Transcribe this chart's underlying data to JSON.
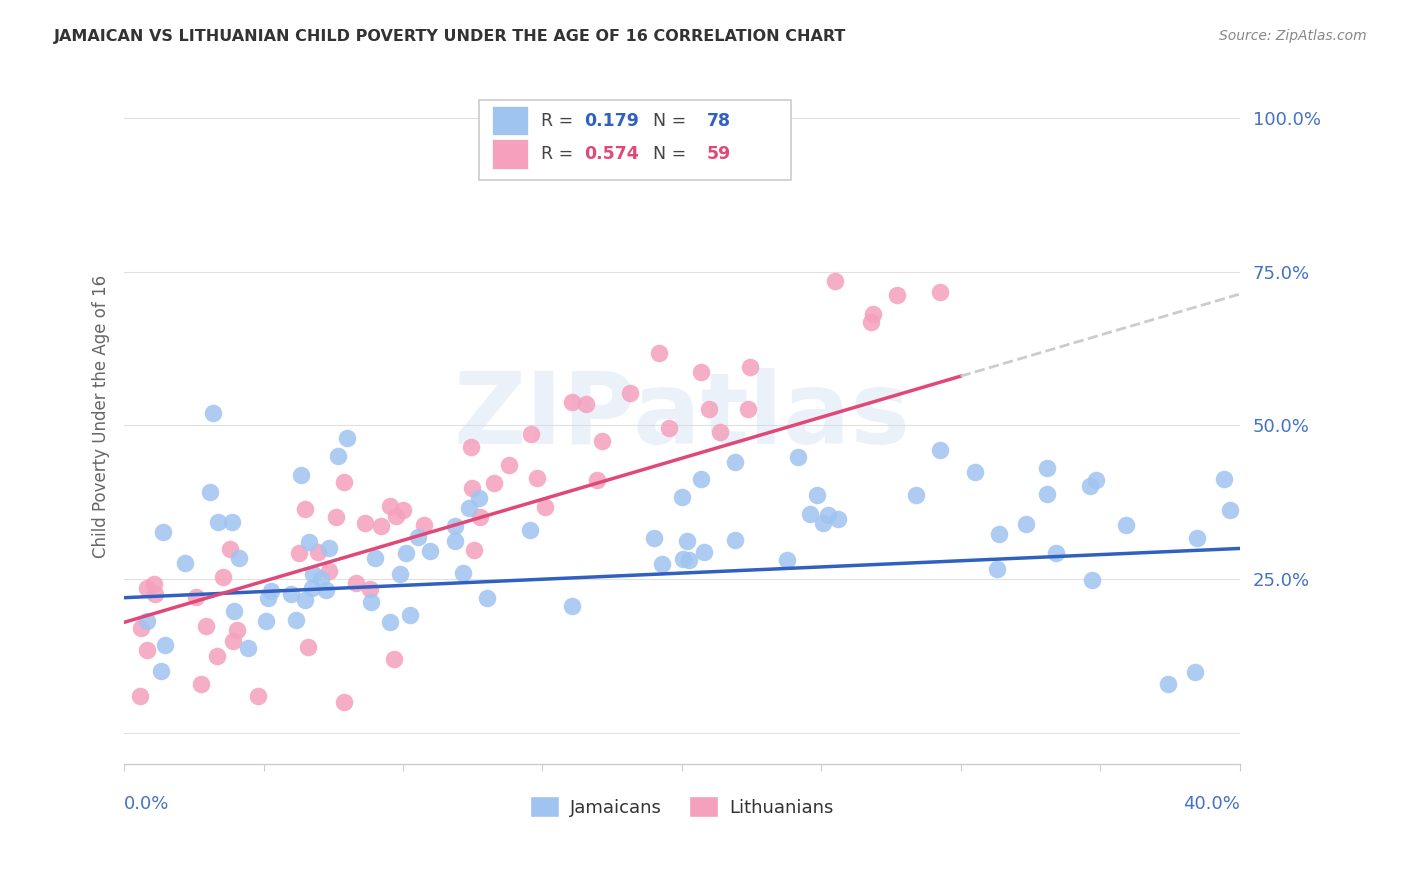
{
  "title": "JAMAICAN VS LITHUANIAN CHILD POVERTY UNDER THE AGE OF 16 CORRELATION CHART",
  "source": "Source: ZipAtlas.com",
  "ylabel": "Child Poverty Under the Age of 16",
  "legend_label1": "Jamaicans",
  "legend_label2": "Lithuanians",
  "r1": "0.179",
  "n1": "78",
  "r2": "0.574",
  "n2": "59",
  "xmin": 0.0,
  "xmax": 0.4,
  "ymin": -0.05,
  "ymax": 1.08,
  "yticks": [
    0.0,
    0.25,
    0.5,
    0.75,
    1.0
  ],
  "ytick_labels": [
    "",
    "25.0%",
    "50.0%",
    "75.0%",
    "100.0%"
  ],
  "color_jamaican": "#a0c4f0",
  "color_lithuanian": "#f5a0bc",
  "color_line_jamaican": "#3060c0",
  "color_line_lithuanian": "#e04878",
  "color_line_ext": "#cccccc",
  "background_color": "#ffffff",
  "watermark": "ZIPatlas",
  "watermark_color": "#c8d8f0",
  "title_color": "#333333",
  "source_color": "#888888",
  "ylabel_color": "#666666",
  "tick_label_color": "#4472c4",
  "grid_color": "#e0e0e0",
  "spine_color": "#cccccc"
}
